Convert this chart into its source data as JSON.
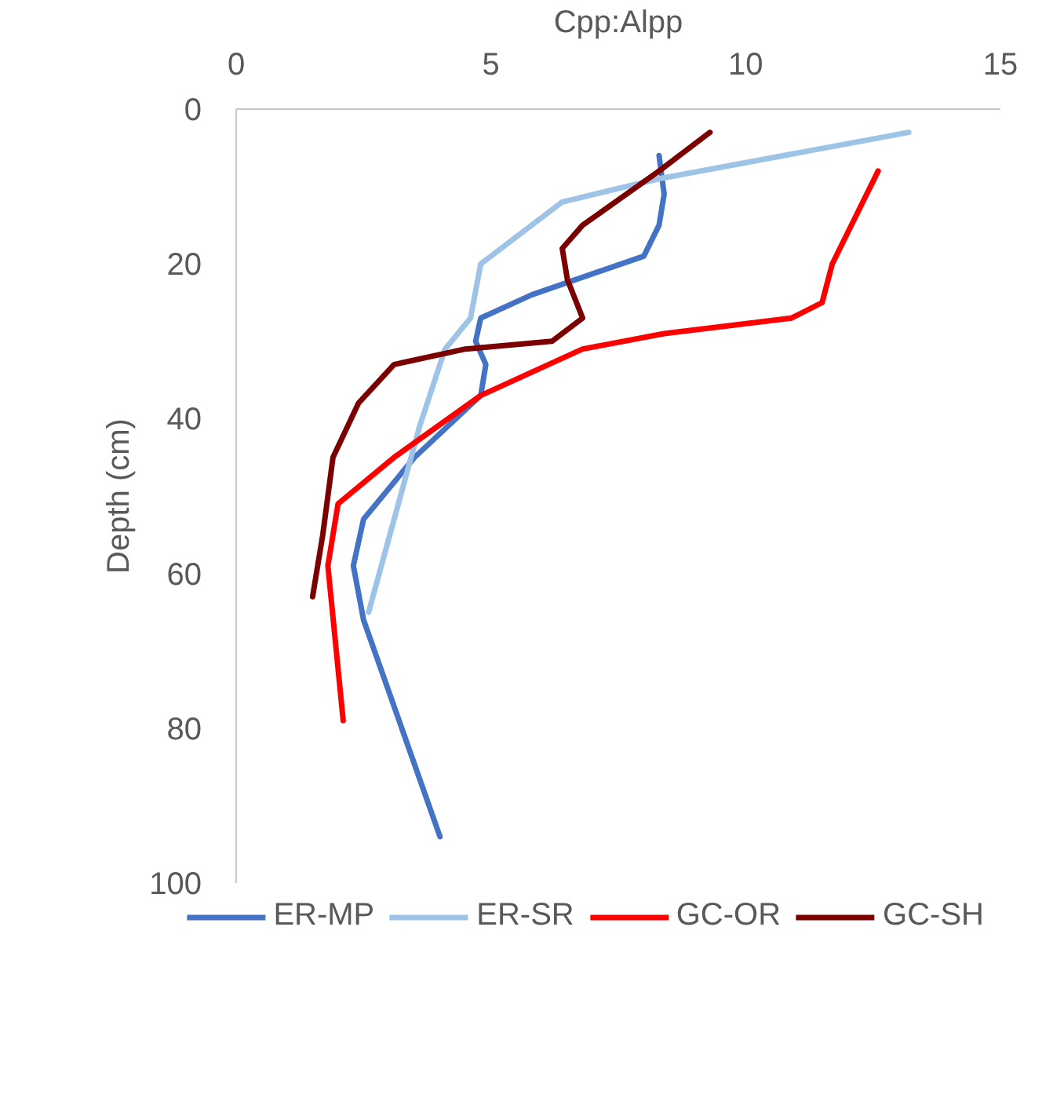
{
  "chart_data": {
    "type": "line",
    "xlabel": "Cpp:Alpp",
    "ylabel": "Depth (cm)",
    "xlim": [
      0,
      15
    ],
    "xticks": [
      0,
      5,
      10,
      15
    ],
    "ylim": [
      100,
      0
    ],
    "yticks": [
      0,
      20,
      40,
      60,
      80,
      100
    ],
    "grid": false,
    "legend": "bottom",
    "marker": "none",
    "line_style": "solid",
    "series": [
      {
        "name": "ER-MP",
        "color": "#4472c4",
        "x": [
          8.3,
          8.4,
          8.3,
          8.0,
          5.8,
          4.8,
          4.7,
          4.9,
          4.8,
          3.5,
          2.5,
          2.3,
          2.5,
          4.0
        ],
        "values": [
          6,
          11,
          15,
          19,
          24,
          27,
          30,
          33,
          37,
          45,
          53,
          59,
          66,
          94
        ]
      },
      {
        "name": "ER-SR",
        "color": "#9dc3e6",
        "x": [
          13.2,
          8.3,
          6.4,
          4.8,
          4.6,
          4.1,
          3.6,
          2.6
        ],
        "values": [
          3,
          9,
          12,
          20,
          27,
          31,
          41,
          65
        ]
      },
      {
        "name": "GC-OR",
        "color": "#ff0000",
        "x": [
          12.6,
          11.7,
          11.5,
          10.9,
          8.4,
          6.8,
          4.8,
          3.1,
          2.0,
          1.8,
          2.1
        ],
        "values": [
          8,
          20,
          25,
          27,
          29,
          31,
          37,
          45,
          51,
          59,
          79
        ]
      },
      {
        "name": "GC-SH",
        "color": "#7b0000",
        "x": [
          9.3,
          8.3,
          6.8,
          6.4,
          6.5,
          6.8,
          6.2,
          4.5,
          3.1,
          2.4,
          1.9,
          1.7,
          1.5
        ],
        "values": [
          3,
          8,
          15,
          18,
          22,
          27,
          30,
          31,
          33,
          38,
          45,
          55,
          63
        ]
      }
    ]
  }
}
